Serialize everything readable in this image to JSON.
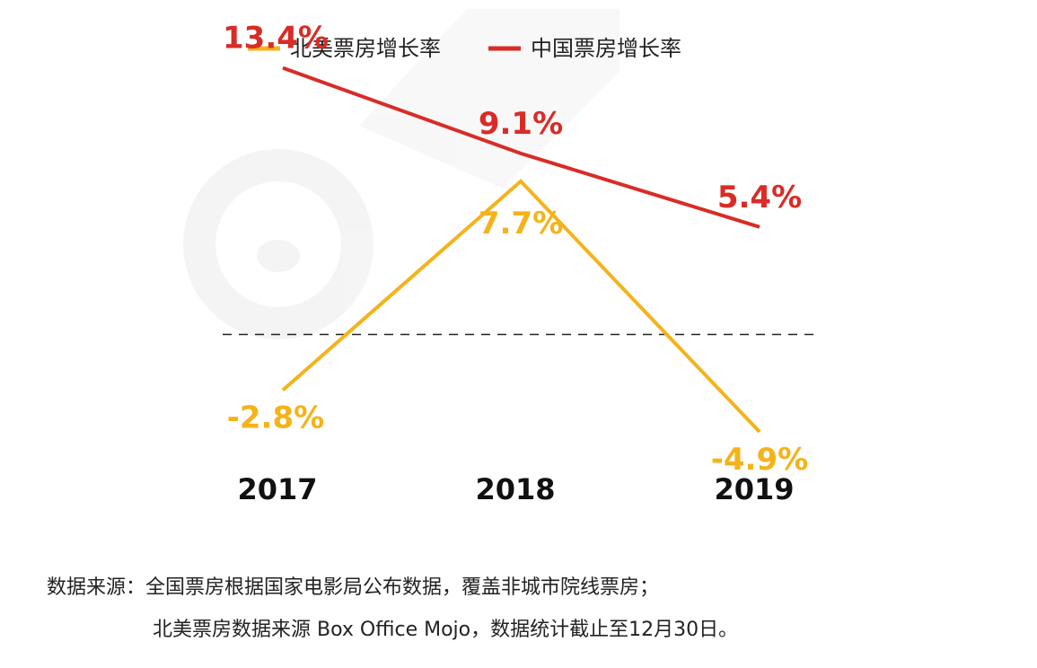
{
  "chart_data": {
    "type": "line",
    "categories": [
      "2017",
      "2018",
      "2019"
    ],
    "series": [
      {
        "name": "北美票房增长率",
        "values": [
          -2.8,
          7.7,
          -4.9
        ],
        "labels": [
          "-2.8%",
          "7.7%",
          "-4.9%"
        ],
        "color": "#f5b31a"
      },
      {
        "name": "中国票房增长率",
        "values": [
          13.4,
          9.1,
          5.4
        ],
        "labels": [
          "13.4%",
          "9.1%",
          "5.4%"
        ],
        "color": "#d92c27"
      }
    ],
    "ylim": [
      -10,
      16
    ],
    "zero_line": true,
    "legend_position": "top"
  },
  "notes": {
    "line1": "数据来源：全国票房根据国家电影局公布数据，覆盖非城市院线票房；",
    "line2": "北美票房数据来源 Box Office Mojo，数据统计截止至12月30日。"
  },
  "colors": {
    "zero_line": "#222222",
    "axis_text": "#111111",
    "watermark": "#ececec"
  }
}
